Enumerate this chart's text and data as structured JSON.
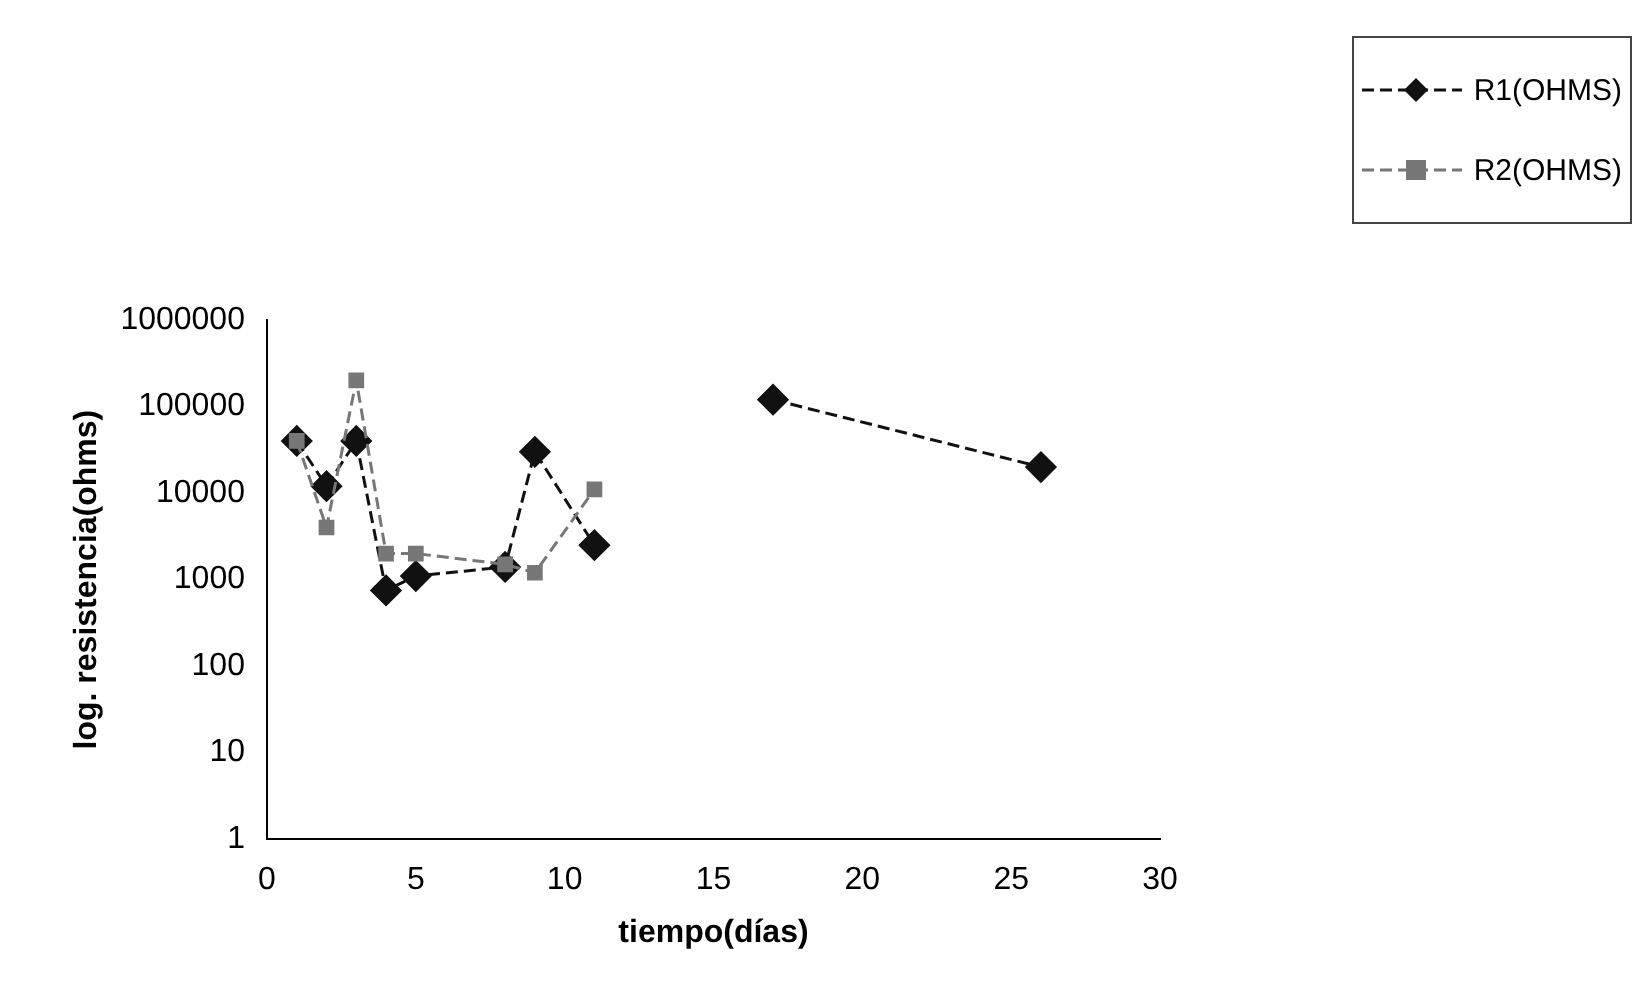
{
  "chart_data": {
    "type": "line",
    "xlabel": "tiempo(días)",
    "ylabel": "log. resistencia(ohms)",
    "xlim": [
      0,
      30
    ],
    "xticks": [
      0,
      5,
      10,
      15,
      20,
      25,
      30
    ],
    "ylim": [
      1,
      1000000
    ],
    "yticks": [
      1,
      10,
      100,
      1000,
      10000,
      100000,
      1000000
    ],
    "log": "y",
    "grid": false,
    "legend": "top right",
    "series": [
      {
        "name": "R1(OHMS)",
        "color": "#111111",
        "marker": "diamond",
        "line_style": "dashed",
        "x": [
          1,
          2,
          3,
          4,
          5,
          8,
          9,
          11,
          14,
          17,
          26
        ],
        "values": [
          40000,
          12000,
          40000,
          750,
          1100,
          1400,
          30000,
          2500,
          null,
          120000,
          20000
        ]
      },
      {
        "name": "R2(OHMS)",
        "color": "#777777",
        "marker": "square",
        "line_style": "dashed",
        "x": [
          1,
          2,
          3,
          4,
          5,
          8,
          9,
          11
        ],
        "values": [
          40000,
          4000,
          200000,
          2000,
          2000,
          1500,
          1200,
          11000
        ]
      }
    ]
  }
}
